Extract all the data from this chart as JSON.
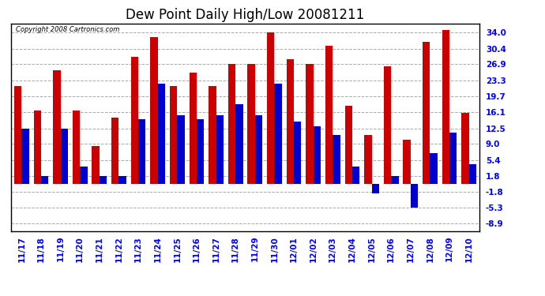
{
  "title": "Dew Point Daily High/Low 20081211",
  "copyright": "Copyright 2008 Cartronics.com",
  "dates": [
    "11/17",
    "11/18",
    "11/19",
    "11/20",
    "11/21",
    "11/22",
    "11/23",
    "11/24",
    "11/25",
    "11/26",
    "11/27",
    "11/28",
    "11/29",
    "11/30",
    "12/01",
    "12/02",
    "12/03",
    "12/04",
    "12/05",
    "12/06",
    "12/07",
    "12/08",
    "12/09",
    "12/10"
  ],
  "highs": [
    22.0,
    16.5,
    25.5,
    16.5,
    8.5,
    15.0,
    28.5,
    33.0,
    22.0,
    25.0,
    22.0,
    27.0,
    27.0,
    34.0,
    28.0,
    27.0,
    31.0,
    17.5,
    11.0,
    26.5,
    10.0,
    32.0,
    34.5,
    16.0
  ],
  "lows": [
    12.5,
    1.8,
    12.5,
    4.0,
    1.8,
    1.8,
    14.5,
    22.5,
    15.5,
    14.5,
    15.5,
    18.0,
    15.5,
    22.5,
    14.0,
    13.0,
    11.0,
    4.0,
    -2.0,
    1.8,
    -5.3,
    7.0,
    11.5,
    4.5
  ],
  "high_color": "#cc0000",
  "low_color": "#0000cc",
  "background_color": "#ffffff",
  "plot_bg_color": "#ffffff",
  "grid_color": "#aaaaaa",
  "yticks": [
    34.0,
    30.4,
    26.9,
    23.3,
    19.7,
    16.1,
    12.5,
    9.0,
    5.4,
    1.8,
    -1.8,
    -5.3,
    -8.9
  ],
  "ylim": [
    -10.5,
    36.0
  ],
  "bar_width": 0.38,
  "title_fontsize": 12,
  "tick_fontsize": 7.5
}
